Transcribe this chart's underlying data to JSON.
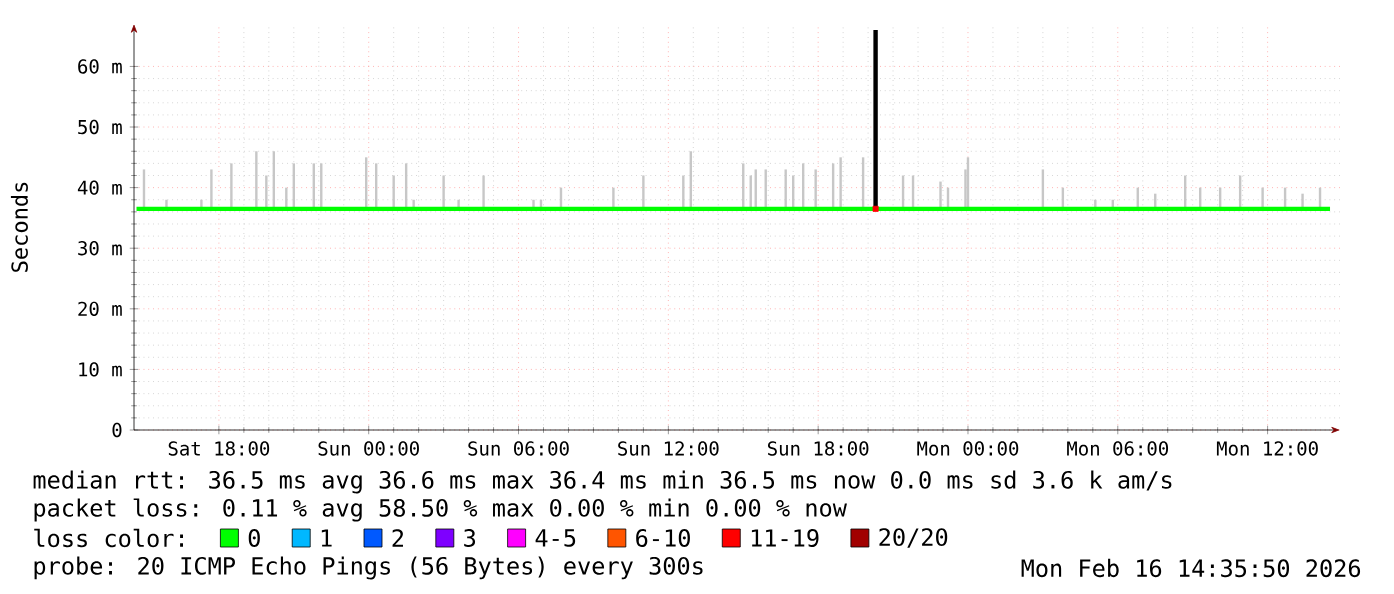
{
  "chart_data": {
    "type": "line",
    "ylabel": "Seconds",
    "xlim": [
      "2026-02-14T14:36",
      "2026-02-16T14:54"
    ],
    "ylim": [
      0,
      67
    ],
    "xticks": [
      {
        "value": "2026-02-14T18:00",
        "label": "Sat 18:00"
      },
      {
        "value": "2026-02-15T00:00",
        "label": "Sun 00:00"
      },
      {
        "value": "2026-02-15T06:00",
        "label": "Sun 06:00"
      },
      {
        "value": "2026-02-15T12:00",
        "label": "Sun 12:00"
      },
      {
        "value": "2026-02-15T18:00",
        "label": "Sun 18:00"
      },
      {
        "value": "2026-02-16T00:00",
        "label": "Mon 00:00"
      },
      {
        "value": "2026-02-16T06:00",
        "label": "Mon 06:00"
      },
      {
        "value": "2026-02-16T12:00",
        "label": "Mon 12:00"
      }
    ],
    "yticks": [
      0,
      {
        "value": 10,
        "label": "10 m"
      },
      {
        "value": 20,
        "label": "20 m"
      },
      {
        "value": 30,
        "label": "30 m"
      },
      {
        "value": 40,
        "label": "40 m"
      },
      {
        "value": 50,
        "label": "50 m"
      },
      {
        "value": 60,
        "label": "60 m"
      }
    ],
    "grid": true,
    "legend": "bottom",
    "legend_title": "loss color:",
    "series": [
      {
        "name": "0",
        "color": "#00ff00",
        "x": [
          "2026-02-14T14:42",
          "2026-02-14T15:00",
          "2026-02-14T15:54",
          "2026-02-14T17:18",
          "2026-02-14T17:42",
          "2026-02-14T18:30",
          "2026-02-14T19:30",
          "2026-02-14T19:54",
          "2026-02-14T20:12",
          "2026-02-14T20:42",
          "2026-02-14T21:00",
          "2026-02-14T21:48",
          "2026-02-14T22:06",
          "2026-02-14T23:54",
          "2026-02-15T00:18",
          "2026-02-15T01:00",
          "2026-02-15T01:30",
          "2026-02-15T01:48",
          "2026-02-15T03:00",
          "2026-02-15T03:36",
          "2026-02-15T04:36",
          "2026-02-15T06:36",
          "2026-02-15T06:54",
          "2026-02-15T07:42",
          "2026-02-15T09:48",
          "2026-02-15T11:00",
          "2026-02-15T12:36",
          "2026-02-15T12:54",
          "2026-02-15T15:00",
          "2026-02-15T15:18",
          "2026-02-15T15:30",
          "2026-02-15T15:54",
          "2026-02-15T16:42",
          "2026-02-15T17:00",
          "2026-02-15T17:24",
          "2026-02-15T17:54",
          "2026-02-15T18:36",
          "2026-02-15T18:54",
          "2026-02-15T19:48",
          "2026-02-15T21:24",
          "2026-02-15T21:48",
          "2026-02-15T22:54",
          "2026-02-15T23:12",
          "2026-02-15T23:54",
          "2026-02-16T00:00",
          "2026-02-16T03:00",
          "2026-02-16T03:48",
          "2026-02-16T05:06",
          "2026-02-16T05:48",
          "2026-02-16T06:48",
          "2026-02-16T07:30",
          "2026-02-16T08:42",
          "2026-02-16T09:18",
          "2026-02-16T10:06",
          "2026-02-16T10:54",
          "2026-02-16T11:48",
          "2026-02-16T12:42",
          "2026-02-16T13:24",
          "2026-02-16T14:06",
          "2026-02-16T14:30"
        ],
        "values": [
          36.5,
          36.5,
          36.5,
          36.5,
          36.5,
          36.5,
          36.5,
          36.5,
          36.5,
          36.5,
          36.5,
          36.5,
          36.5,
          36.5,
          36.5,
          36.5,
          36.5,
          36.5,
          36.5,
          36.5,
          36.5,
          36.5,
          36.5,
          36.5,
          36.5,
          36.5,
          36.5,
          36.5,
          36.5,
          36.5,
          36.5,
          36.5,
          36.5,
          36.5,
          36.5,
          36.5,
          36.5,
          36.5,
          36.5,
          36.5,
          36.5,
          36.5,
          36.5,
          36.5,
          36.5,
          36.5,
          36.5,
          36.5,
          36.5,
          36.5,
          36.5,
          36.5,
          36.5,
          36.5,
          36.5,
          36.5,
          36.5,
          36.5,
          36.5,
          36.5
        ],
        "errors": [
          null,
          [
            36.5,
            43
          ],
          [
            36.5,
            38
          ],
          [
            36.5,
            38
          ],
          [
            36.5,
            43
          ],
          [
            36.5,
            44
          ],
          [
            36.5,
            46
          ],
          [
            36.5,
            42
          ],
          [
            36.5,
            46
          ],
          [
            36.5,
            40
          ],
          [
            36.5,
            44
          ],
          [
            36.5,
            44
          ],
          [
            36.5,
            44
          ],
          [
            36.5,
            45
          ],
          [
            36.5,
            44
          ],
          [
            36.5,
            42
          ],
          [
            36.5,
            44
          ],
          [
            36.5,
            38
          ],
          [
            36.5,
            42
          ],
          [
            36.5,
            38
          ],
          [
            36.5,
            42
          ],
          [
            36.5,
            38
          ],
          [
            36.5,
            38
          ],
          [
            36.5,
            40
          ],
          [
            36.5,
            40
          ],
          [
            36.5,
            42
          ],
          [
            36.5,
            42
          ],
          [
            36.5,
            46
          ],
          [
            36.5,
            44
          ],
          [
            36.5,
            42
          ],
          [
            36.5,
            43
          ],
          [
            36.5,
            43
          ],
          [
            36.5,
            43
          ],
          [
            36.5,
            42
          ],
          [
            36.5,
            44
          ],
          [
            36.5,
            43
          ],
          [
            36.5,
            44
          ],
          [
            36.5,
            45
          ],
          [
            36.5,
            45
          ],
          [
            36.5,
            42
          ],
          [
            36.5,
            42
          ],
          [
            36.5,
            41
          ],
          [
            36.5,
            40
          ],
          [
            36.5,
            43
          ],
          [
            36.5,
            45
          ],
          [
            36.5,
            43
          ],
          [
            36.5,
            40
          ],
          [
            36.5,
            38
          ],
          [
            36.5,
            38
          ],
          [
            36.5,
            40
          ],
          [
            36.5,
            39
          ],
          [
            36.5,
            42
          ],
          [
            36.5,
            40
          ],
          [
            36.5,
            40
          ],
          [
            36.5,
            42
          ],
          [
            36.5,
            40
          ],
          [
            36.5,
            40
          ],
          [
            36.5,
            39
          ],
          [
            36.5,
            40
          ],
          null
        ]
      },
      {
        "name": "1",
        "color": "#00b8ff"
      },
      {
        "name": "2",
        "color": "#0059ff"
      },
      {
        "name": "3",
        "color": "#7e00ff"
      },
      {
        "name": "4-5",
        "color": "#ff00ff"
      },
      {
        "name": "6-10",
        "color": "#ff5500"
      },
      {
        "name": "11-19",
        "color": "#ff0000",
        "type": "scatter",
        "x": [
          "2026-02-15T20:18"
        ],
        "values": [
          36.5
        ]
      },
      {
        "name": "20/20",
        "color": "#a10000"
      },
      {
        "color": "#000000",
        "x": [
          "2026-02-15T20:18",
          "2026-02-15T20:18"
        ],
        "values": [
          36.6,
          66
        ]
      }
    ],
    "annotations": [
      "median rtt:  36.5 ms avg  36.6 ms max  36.4 ms min  36.5 ms now  0.0 ms sd  3.6 k am/s",
      "packet loss: 0.11 % avg  58.50 % max  0.00 % min  0.00 % now",
      "probe:       20 ICMP Echo Pings (56 Bytes) every 300s",
      "Mon Feb 16 14:35:50 2026"
    ]
  }
}
